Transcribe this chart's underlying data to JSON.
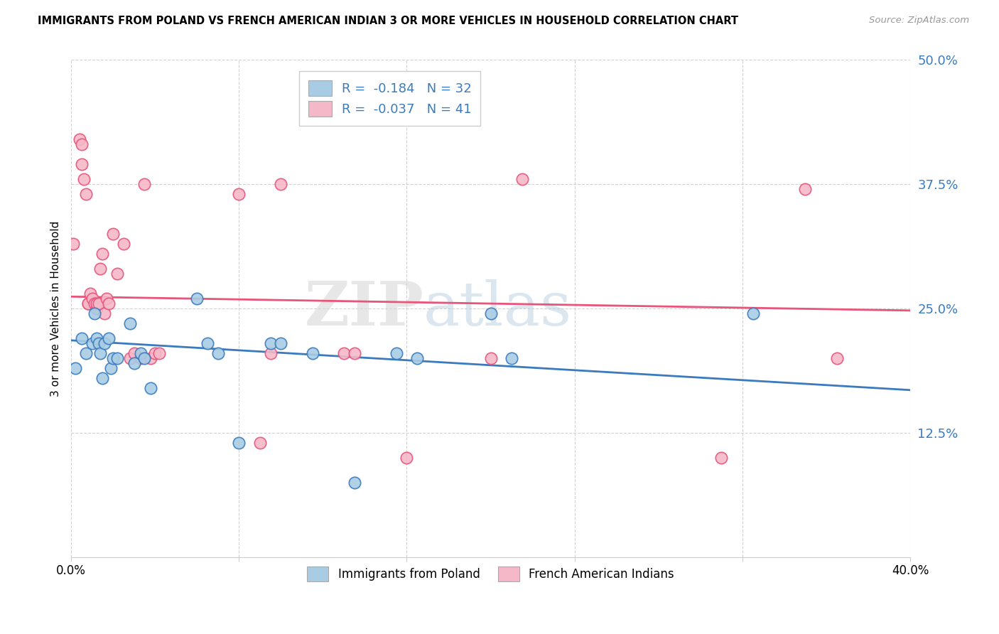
{
  "title": "IMMIGRANTS FROM POLAND VS FRENCH AMERICAN INDIAN 3 OR MORE VEHICLES IN HOUSEHOLD CORRELATION CHART",
  "source": "Source: ZipAtlas.com",
  "ylabel": "3 or more Vehicles in Household",
  "xlim": [
    0.0,
    0.4
  ],
  "ylim": [
    0.0,
    0.5
  ],
  "yticks": [
    0.125,
    0.25,
    0.375,
    0.5
  ],
  "ytick_labels": [
    "12.5%",
    "25.0%",
    "37.5%",
    "50.0%"
  ],
  "xticks": [
    0.0,
    0.08,
    0.16,
    0.24,
    0.32,
    0.4
  ],
  "xtick_labels": [
    "0.0%",
    "",
    "",
    "",
    "",
    "40.0%"
  ],
  "legend_r1": "R =  -0.184",
  "legend_n1": "N = 32",
  "legend_r2": "R =  -0.037",
  "legend_n2": "N = 41",
  "color_blue": "#a8cce4",
  "color_pink": "#f4b8c8",
  "line_blue": "#3a7bbf",
  "line_pink": "#e8547a",
  "watermark_zip": "ZIP",
  "watermark_atlas": "atlas",
  "blue_points_x": [
    0.002,
    0.005,
    0.007,
    0.01,
    0.011,
    0.012,
    0.013,
    0.014,
    0.015,
    0.016,
    0.018,
    0.019,
    0.02,
    0.022,
    0.028,
    0.03,
    0.033,
    0.035,
    0.038,
    0.06,
    0.065,
    0.07,
    0.08,
    0.095,
    0.1,
    0.115,
    0.135,
    0.155,
    0.165,
    0.2,
    0.21,
    0.325
  ],
  "blue_points_y": [
    0.19,
    0.22,
    0.205,
    0.215,
    0.245,
    0.22,
    0.215,
    0.205,
    0.18,
    0.215,
    0.22,
    0.19,
    0.2,
    0.2,
    0.235,
    0.195,
    0.205,
    0.2,
    0.17,
    0.26,
    0.215,
    0.205,
    0.115,
    0.215,
    0.215,
    0.205,
    0.075,
    0.205,
    0.2,
    0.245,
    0.2,
    0.245
  ],
  "pink_points_x": [
    0.001,
    0.004,
    0.005,
    0.005,
    0.006,
    0.007,
    0.008,
    0.008,
    0.009,
    0.01,
    0.011,
    0.012,
    0.012,
    0.013,
    0.014,
    0.015,
    0.016,
    0.017,
    0.018,
    0.02,
    0.022,
    0.025,
    0.028,
    0.03,
    0.033,
    0.035,
    0.038,
    0.04,
    0.042,
    0.08,
    0.09,
    0.095,
    0.1,
    0.13,
    0.135,
    0.16,
    0.2,
    0.215,
    0.31,
    0.35,
    0.365
  ],
  "pink_points_y": [
    0.315,
    0.42,
    0.415,
    0.395,
    0.38,
    0.365,
    0.255,
    0.255,
    0.265,
    0.26,
    0.255,
    0.25,
    0.255,
    0.255,
    0.29,
    0.305,
    0.245,
    0.26,
    0.255,
    0.325,
    0.285,
    0.315,
    0.2,
    0.205,
    0.2,
    0.375,
    0.2,
    0.205,
    0.205,
    0.365,
    0.115,
    0.205,
    0.375,
    0.205,
    0.205,
    0.1,
    0.2,
    0.38,
    0.1,
    0.37,
    0.2
  ],
  "trend_blue_start_y": 0.218,
  "trend_blue_end_y": 0.168,
  "trend_pink_start_y": 0.262,
  "trend_pink_end_y": 0.248
}
